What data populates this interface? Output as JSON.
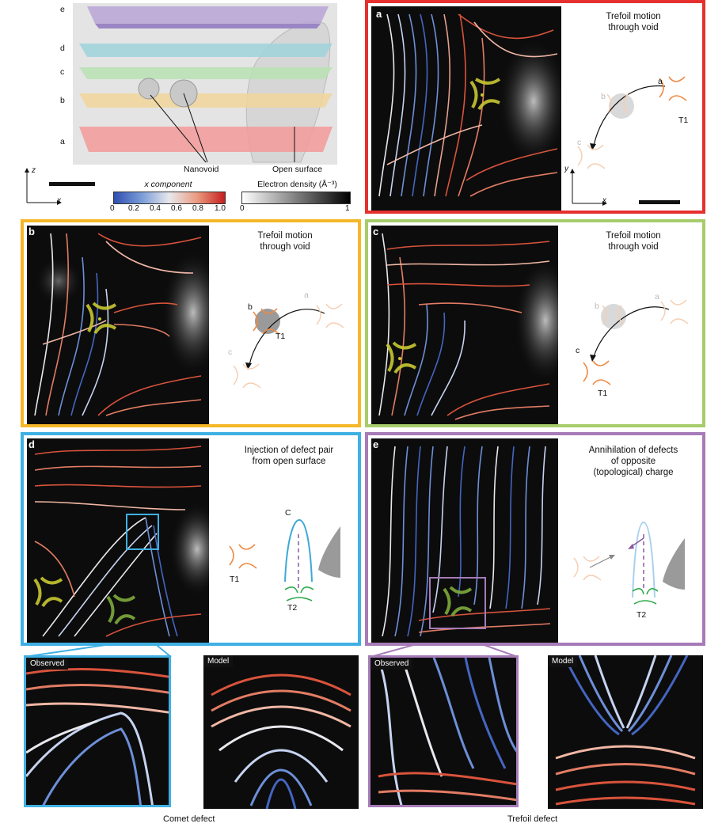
{
  "overview": {
    "layers": [
      "e",
      "d",
      "c",
      "b",
      "a"
    ],
    "nanovoid_label": "Nanovoid",
    "open_surface_label": "Open surface",
    "axis_z": "z",
    "axis_x": "x",
    "colorbar1": {
      "title": "x component",
      "ticks": [
        "0",
        "0.2",
        "0.4",
        "0.6",
        "0.8",
        "1.0"
      ]
    },
    "colorbar2": {
      "title": "Electron density (Å⁻³)",
      "ticks": [
        "0",
        "1"
      ]
    }
  },
  "panels": {
    "a": {
      "label": "a",
      "title_line1": "Trefoil motion",
      "title_line2": "through void",
      "pos_a": "a",
      "pos_b": "b",
      "pos_c": "c",
      "defect": "T1",
      "axis_y": "y",
      "axis_x": "x",
      "color": "#e5302f"
    },
    "b": {
      "label": "b",
      "title_line1": "Trefoil motion",
      "title_line2": "through void",
      "pos_a": "a",
      "pos_b": "b",
      "pos_c": "c",
      "defect": "T1",
      "color": "#f4b728"
    },
    "c": {
      "label": "c",
      "title_line1": "Trefoil motion",
      "title_line2": "through void",
      "pos_a": "a",
      "pos_b": "b",
      "pos_c": "c",
      "defect": "T1",
      "color": "#a8cc6b"
    },
    "d": {
      "label": "d",
      "title_line1": "Injection of defect pair",
      "title_line2": "from open surface",
      "defect_c": "C",
      "defect_t1": "T1",
      "defect_t2": "T2",
      "color": "#3fb0e3"
    },
    "e": {
      "label": "e",
      "title_line1": "Annihilation of defects",
      "title_line2": "of opposite",
      "title_line3": "(topological) charge",
      "defect_t2": "T2",
      "color": "#a67bb8"
    }
  },
  "bottom": {
    "observed_label": "Observed",
    "model_label": "Model",
    "comet_caption": "Comet defect",
    "trefoil_caption": "Trefoil defect"
  }
}
